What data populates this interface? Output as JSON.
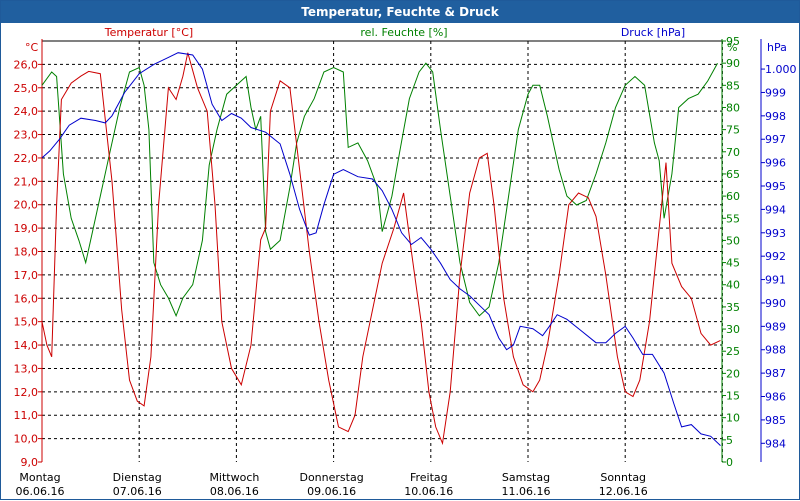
{
  "window": {
    "title": "Temperatur, Feuchte & Druck"
  },
  "chart_data": {
    "type": "line",
    "title": "Temperatur, Feuchte & Druck",
    "series_labels": {
      "temp": "Temperatur [°C]",
      "hum": "rel. Feuchte [%]",
      "press": "Druck [hPa]"
    },
    "units": {
      "temp": "°C",
      "hum": "%",
      "press": "hPa"
    },
    "colors": {
      "temp": "#cc0000",
      "hum": "#008000",
      "press": "#0000cc",
      "titlebar": "#205f9f"
    },
    "grid": true,
    "x_range": [
      0,
      7
    ],
    "day_labels": [
      {
        "day": "Montag",
        "date": "06.06.16"
      },
      {
        "day": "Dienstag",
        "date": "07.06.16"
      },
      {
        "day": "Mittwoch",
        "date": "08.06.16"
      },
      {
        "day": "Donnerstag",
        "date": "09.06.16"
      },
      {
        "day": "Freitag",
        "date": "10.06.16"
      },
      {
        "day": "Samstag",
        "date": "11.06.16"
      },
      {
        "day": "Sonntag",
        "date": "12.06.16"
      }
    ],
    "temp_axis": {
      "ylim": [
        9,
        27
      ],
      "ticks": [
        "9,0",
        "10,0",
        "11,0",
        "12,0",
        "13,0",
        "14,0",
        "15,0",
        "16,0",
        "17,0",
        "18,0",
        "19,0",
        "20,0",
        "21,0",
        "22,0",
        "23,0",
        "24,0",
        "25,0",
        "26,0"
      ]
    },
    "hum_axis": {
      "ylim": [
        0,
        95
      ],
      "ticks": [
        "0",
        "5",
        "10",
        "15",
        "20",
        "25",
        "30",
        "35",
        "40",
        "45",
        "50",
        "55",
        "60",
        "65",
        "70",
        "75",
        "80",
        "85",
        "90",
        "95"
      ]
    },
    "press_axis": {
      "ylim": [
        983.2,
        1001.2
      ],
      "ticks": [
        "984",
        "985",
        "986",
        "987",
        "988",
        "989",
        "990",
        "991",
        "992",
        "993",
        "994",
        "995",
        "996",
        "997",
        "998",
        "999",
        "1.000"
      ]
    },
    "temperature": [
      [
        0.0,
        15.0
      ],
      [
        0.05,
        14.0
      ],
      [
        0.1,
        13.5
      ],
      [
        0.15,
        20.0
      ],
      [
        0.2,
        24.5
      ],
      [
        0.3,
        25.2
      ],
      [
        0.4,
        25.5
      ],
      [
        0.48,
        25.7
      ],
      [
        0.6,
        25.6
      ],
      [
        0.72,
        21.0
      ],
      [
        0.82,
        15.5
      ],
      [
        0.9,
        12.5
      ],
      [
        0.98,
        11.6
      ],
      [
        1.05,
        11.4
      ],
      [
        1.12,
        13.5
      ],
      [
        1.2,
        20.0
      ],
      [
        1.3,
        25.0
      ],
      [
        1.38,
        24.5
      ],
      [
        1.45,
        25.5
      ],
      [
        1.5,
        26.5
      ],
      [
        1.6,
        25.0
      ],
      [
        1.7,
        24.0
      ],
      [
        1.78,
        20.0
      ],
      [
        1.85,
        15.0
      ],
      [
        1.95,
        13.0
      ],
      [
        2.05,
        12.3
      ],
      [
        2.15,
        14.0
      ],
      [
        2.25,
        18.5
      ],
      [
        2.3,
        19.0
      ],
      [
        2.35,
        24.0
      ],
      [
        2.45,
        25.3
      ],
      [
        2.55,
        25.0
      ],
      [
        2.65,
        21.5
      ],
      [
        2.75,
        18.0
      ],
      [
        2.85,
        15.0
      ],
      [
        2.95,
        12.5
      ],
      [
        3.05,
        10.5
      ],
      [
        3.15,
        10.3
      ],
      [
        3.22,
        11.0
      ],
      [
        3.3,
        13.5
      ],
      [
        3.4,
        15.5
      ],
      [
        3.5,
        17.5
      ],
      [
        3.62,
        19.0
      ],
      [
        3.72,
        20.5
      ],
      [
        3.8,
        18.0
      ],
      [
        3.9,
        15.0
      ],
      [
        3.98,
        12.0
      ],
      [
        4.05,
        10.5
      ],
      [
        4.12,
        9.8
      ],
      [
        4.2,
        12.0
      ],
      [
        4.3,
        17.0
      ],
      [
        4.4,
        20.5
      ],
      [
        4.5,
        22.0
      ],
      [
        4.58,
        22.2
      ],
      [
        4.65,
        20.0
      ],
      [
        4.75,
        16.0
      ],
      [
        4.85,
        13.5
      ],
      [
        4.95,
        12.3
      ],
      [
        5.05,
        12.0
      ],
      [
        5.12,
        12.5
      ],
      [
        5.2,
        14.0
      ],
      [
        5.32,
        17.0
      ],
      [
        5.42,
        20.0
      ],
      [
        5.52,
        20.5
      ],
      [
        5.62,
        20.3
      ],
      [
        5.7,
        19.5
      ],
      [
        5.8,
        17.0
      ],
      [
        5.92,
        13.5
      ],
      [
        6.0,
        12.0
      ],
      [
        6.08,
        11.8
      ],
      [
        6.15,
        12.5
      ],
      [
        6.25,
        15.0
      ],
      [
        6.35,
        19.0
      ],
      [
        6.42,
        21.8
      ],
      [
        6.48,
        17.5
      ],
      [
        6.58,
        16.5
      ],
      [
        6.68,
        16.0
      ],
      [
        6.78,
        14.5
      ],
      [
        6.88,
        14.0
      ],
      [
        6.98,
        14.2
      ]
    ],
    "humidity": [
      [
        0.0,
        85.0
      ],
      [
        0.1,
        88.0
      ],
      [
        0.15,
        87.0
      ],
      [
        0.22,
        65.0
      ],
      [
        0.3,
        55.0
      ],
      [
        0.38,
        50.0
      ],
      [
        0.45,
        45.0
      ],
      [
        0.5,
        50.0
      ],
      [
        0.6,
        60.0
      ],
      [
        0.7,
        70.0
      ],
      [
        0.8,
        80.0
      ],
      [
        0.9,
        88.0
      ],
      [
        1.0,
        89.0
      ],
      [
        1.05,
        85.0
      ],
      [
        1.1,
        75.0
      ],
      [
        1.15,
        45.0
      ],
      [
        1.22,
        40.0
      ],
      [
        1.3,
        37.0
      ],
      [
        1.38,
        33.0
      ],
      [
        1.45,
        37.0
      ],
      [
        1.55,
        40.0
      ],
      [
        1.65,
        50.0
      ],
      [
        1.72,
        67.0
      ],
      [
        1.8,
        75.0
      ],
      [
        1.9,
        83.0
      ],
      [
        2.0,
        85.0
      ],
      [
        2.1,
        87.0
      ],
      [
        2.15,
        80.0
      ],
      [
        2.2,
        75.0
      ],
      [
        2.25,
        78.0
      ],
      [
        2.3,
        52.0
      ],
      [
        2.35,
        48.0
      ],
      [
        2.45,
        50.0
      ],
      [
        2.55,
        62.0
      ],
      [
        2.62,
        72.0
      ],
      [
        2.7,
        78.0
      ],
      [
        2.8,
        82.0
      ],
      [
        2.9,
        88.0
      ],
      [
        3.0,
        89.0
      ],
      [
        3.1,
        88.0
      ],
      [
        3.15,
        71.0
      ],
      [
        3.25,
        72.0
      ],
      [
        3.35,
        68.0
      ],
      [
        3.45,
        62.0
      ],
      [
        3.5,
        52.0
      ],
      [
        3.6,
        60.0
      ],
      [
        3.68,
        70.0
      ],
      [
        3.78,
        82.0
      ],
      [
        3.88,
        88.0
      ],
      [
        3.95,
        90.0
      ],
      [
        4.02,
        88.0
      ],
      [
        4.1,
        75.0
      ],
      [
        4.2,
        60.0
      ],
      [
        4.3,
        45.0
      ],
      [
        4.4,
        36.0
      ],
      [
        4.5,
        33.0
      ],
      [
        4.6,
        35.0
      ],
      [
        4.7,
        45.0
      ],
      [
        4.8,
        60.0
      ],
      [
        4.9,
        75.0
      ],
      [
        5.0,
        83.0
      ],
      [
        5.05,
        85.0
      ],
      [
        5.12,
        85.0
      ],
      [
        5.2,
        78.0
      ],
      [
        5.32,
        66.0
      ],
      [
        5.4,
        60.0
      ],
      [
        5.5,
        58.0
      ],
      [
        5.6,
        59.0
      ],
      [
        5.7,
        65.0
      ],
      [
        5.8,
        72.0
      ],
      [
        5.9,
        80.0
      ],
      [
        6.0,
        85.0
      ],
      [
        6.1,
        87.0
      ],
      [
        6.2,
        85.0
      ],
      [
        6.3,
        72.0
      ],
      [
        6.35,
        68.0
      ],
      [
        6.4,
        55.0
      ],
      [
        6.48,
        65.0
      ],
      [
        6.55,
        80.0
      ],
      [
        6.65,
        82.0
      ],
      [
        6.75,
        83.0
      ],
      [
        6.85,
        86.0
      ],
      [
        6.95,
        90.0
      ]
    ],
    "pressure": [
      [
        0.0,
        996.2
      ],
      [
        0.08,
        996.5
      ],
      [
        0.18,
        997.0
      ],
      [
        0.28,
        997.6
      ],
      [
        0.4,
        997.9
      ],
      [
        0.55,
        997.8
      ],
      [
        0.65,
        997.7
      ],
      [
        0.72,
        998.0
      ],
      [
        0.85,
        999.0
      ],
      [
        1.0,
        999.8
      ],
      [
        1.15,
        1000.2
      ],
      [
        1.3,
        1000.5
      ],
      [
        1.4,
        1000.7
      ],
      [
        1.55,
        1000.6
      ],
      [
        1.65,
        1000.0
      ],
      [
        1.75,
        998.5
      ],
      [
        1.85,
        997.8
      ],
      [
        1.95,
        998.1
      ],
      [
        2.05,
        997.9
      ],
      [
        2.15,
        997.5
      ],
      [
        2.3,
        997.3
      ],
      [
        2.45,
        996.8
      ],
      [
        2.55,
        995.5
      ],
      [
        2.65,
        994.0
      ],
      [
        2.75,
        992.9
      ],
      [
        2.82,
        993.0
      ],
      [
        2.9,
        994.2
      ],
      [
        3.0,
        995.5
      ],
      [
        3.1,
        995.7
      ],
      [
        3.25,
        995.4
      ],
      [
        3.4,
        995.3
      ],
      [
        3.5,
        994.8
      ],
      [
        3.6,
        994.0
      ],
      [
        3.7,
        993.0
      ],
      [
        3.8,
        992.5
      ],
      [
        3.9,
        992.8
      ],
      [
        4.0,
        992.3
      ],
      [
        4.1,
        991.7
      ],
      [
        4.2,
        991.0
      ],
      [
        4.3,
        990.6
      ],
      [
        4.4,
        990.3
      ],
      [
        4.5,
        989.9
      ],
      [
        4.6,
        989.5
      ],
      [
        4.7,
        988.5
      ],
      [
        4.78,
        988.0
      ],
      [
        4.85,
        988.2
      ],
      [
        4.92,
        989.0
      ],
      [
        5.05,
        988.9
      ],
      [
        5.15,
        988.6
      ],
      [
        5.22,
        989.0
      ],
      [
        5.3,
        989.5
      ],
      [
        5.4,
        989.3
      ],
      [
        5.55,
        988.8
      ],
      [
        5.7,
        988.3
      ],
      [
        5.8,
        988.3
      ],
      [
        5.9,
        988.7
      ],
      [
        6.0,
        989.0
      ],
      [
        6.08,
        988.5
      ],
      [
        6.18,
        987.8
      ],
      [
        6.28,
        987.8
      ],
      [
        6.4,
        987.0
      ],
      [
        6.5,
        985.7
      ],
      [
        6.58,
        984.7
      ],
      [
        6.68,
        984.8
      ],
      [
        6.78,
        984.4
      ],
      [
        6.88,
        984.3
      ],
      [
        6.98,
        983.9
      ]
    ]
  }
}
